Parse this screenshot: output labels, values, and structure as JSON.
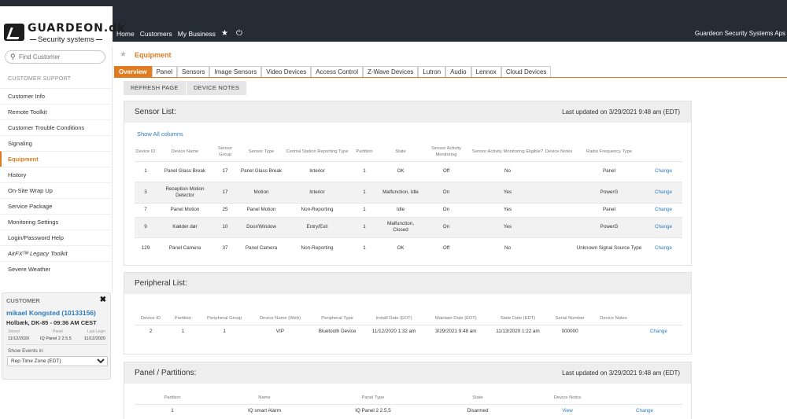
{
  "brand": {
    "name": "GUARDEON.dk",
    "tagline": "Security systems"
  },
  "nav": {
    "home": "Home",
    "customers": "Customers",
    "business": "My Business",
    "company": "Guardeon Security Systems Aps"
  },
  "sidebar": {
    "search_placeholder": "Find Customer",
    "section_title": "CUSTOMER SUPPORT",
    "items": [
      {
        "label": "Customer Info"
      },
      {
        "label": "Remote Toolkit"
      },
      {
        "label": "Customer Trouble Conditions"
      },
      {
        "label": "Signaling"
      },
      {
        "label": "Equipment"
      },
      {
        "label": "History"
      },
      {
        "label": "On-Site Wrap Up"
      },
      {
        "label": "Service Package"
      },
      {
        "label": "Monitoring Settings"
      },
      {
        "label": "Login/Password Help"
      },
      {
        "label": "AirFXᵀᴹ Legacy Toolkit"
      },
      {
        "label": "Severe Weather"
      }
    ]
  },
  "customer": {
    "title": "CUSTOMER",
    "name": "mikael Kongsted (10133156)",
    "location": "Holbæk, DK-85 - 09:36 AM CEST",
    "joined_label": "Joined",
    "panel_label": "Panel",
    "login_label": "Last Login",
    "joined": "11/12/2020",
    "panel": "IQ Panel 2 2.5.5",
    "last_login": "11/12/2020",
    "events_label": "Show Events in",
    "events_value": "Rep Time Zone (EDT)"
  },
  "page": {
    "title": "Equipment"
  },
  "tabs": [
    {
      "label": "Overview"
    },
    {
      "label": "Panel"
    },
    {
      "label": "Sensors"
    },
    {
      "label": "Image Sensors"
    },
    {
      "label": "Video Devices"
    },
    {
      "label": "Access Control"
    },
    {
      "label": "Z-Wave Devices"
    },
    {
      "label": "Lutron"
    },
    {
      "label": "Audio"
    },
    {
      "label": "Lennox"
    },
    {
      "label": "Cloud Devices"
    }
  ],
  "actions": {
    "refresh": "REFRESH PAGE",
    "notes": "DEVICE NOTES"
  },
  "sensors": {
    "title": "Sensor List:",
    "updated": "Last updated on 3/29/2021 9:48 am (EDT)",
    "show_all": "Show All columns",
    "headers": [
      "Device ID",
      "Device Name",
      "Sensor Group",
      "Sensor Type",
      "Central Station Reporting Type",
      "Partition",
      "State",
      "Sensor Activity Monitoring",
      "Sensor Activity Monitoring Eligible?",
      "Device Notes",
      "Radio Frequency Type",
      ""
    ],
    "rows": [
      [
        "1",
        "Panel Glass Break",
        "17",
        "Panel Glass Break",
        "Interior",
        "1",
        "OK",
        "Off",
        "No",
        "",
        "Panel",
        "Change"
      ],
      [
        "3",
        "Reception Motion Detector",
        "17",
        "Motion",
        "Interior",
        "1",
        "Malfunction, Idle",
        "On",
        "Yes",
        "",
        "PowerG",
        "Change"
      ],
      [
        "7",
        "Panel Motion",
        "25",
        "Panel Motion",
        "Non-Reporting",
        "1",
        "Idle",
        "On",
        "Yes",
        "",
        "Panel",
        "Change"
      ],
      [
        "9",
        "Kælder dør",
        "10",
        "Door/Window",
        "Entry/Exit",
        "1",
        "Malfunction, Closed",
        "On",
        "Yes",
        "",
        "PowerG",
        "Change"
      ],
      [
        "129",
        "Panel Camera",
        "37",
        "Panel Camera",
        "Non-Reporting",
        "1",
        "OK",
        "Off",
        "No",
        "",
        "Unknown Signal Source Type",
        "Change"
      ]
    ]
  },
  "peripherals": {
    "title": "Peripheral List:",
    "headers": [
      "Device ID",
      "Partition",
      "Peripheral Group",
      "Device Name (Web)",
      "Peripheral Type",
      "Install Date (EDT)",
      "Maintain Date (EDT)",
      "State Date (EDT)",
      "Serial Number",
      "Device Notes",
      ""
    ],
    "rows": [
      [
        "2",
        "1",
        "1",
        "VIP",
        "Bluetooth Device",
        "11/12/2020 1:32 am",
        "3/29/2021 9:48 am",
        "11/13/2020 1:22 am",
        "000000",
        "",
        "Change"
      ]
    ]
  },
  "partitions": {
    "title": "Panel / Partitions:",
    "updated": "Last updated on 3/29/2021 9:48 am (EDT)",
    "headers": [
      "Partition",
      "Name",
      "Panel Type",
      "State",
      "Device Notes",
      ""
    ],
    "rows": [
      [
        "1",
        "IQ smart Alarm",
        "IQ Panel 2 2.5.5",
        "Disarmed",
        "View",
        "Change"
      ]
    ]
  }
}
